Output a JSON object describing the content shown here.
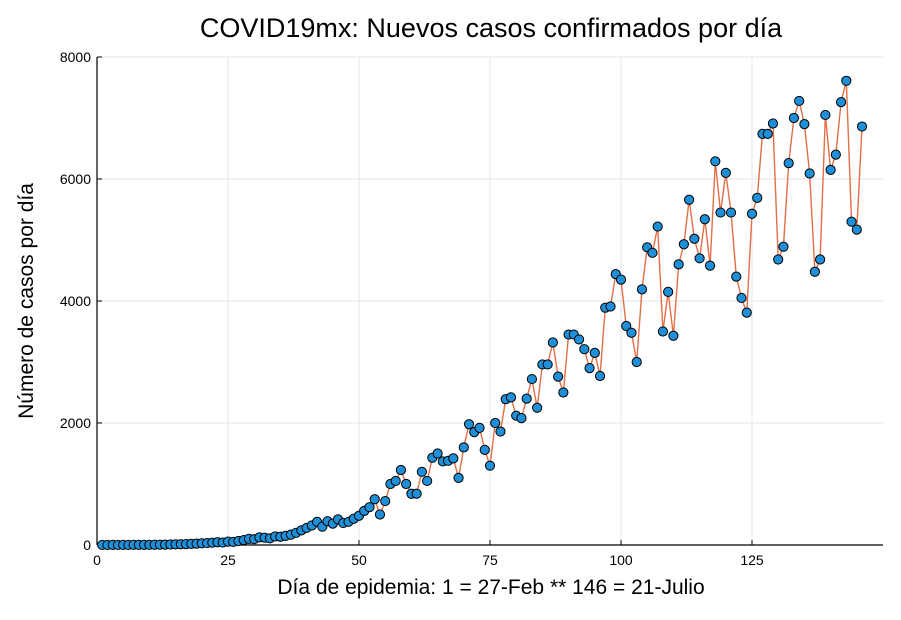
{
  "chart_data": {
    "type": "line",
    "title": "COVID19mx: Nuevos casos confirmados por día",
    "xlabel": "Día de epidemia: 1 = 27-Feb ** 146 = 21-Julio",
    "ylabel": "Número de casos por día",
    "xlim": [
      0,
      150
    ],
    "ylim": [
      0,
      8000
    ],
    "xticks": [
      0,
      25,
      50,
      75,
      100,
      125
    ],
    "yticks": [
      0,
      2000,
      4000,
      6000,
      8000
    ],
    "grid": true,
    "legend": "none",
    "colors": {
      "line": "#e26f46",
      "marker_fill": "#1f8fd8",
      "marker_edge": "#000000"
    },
    "x": [
      1,
      2,
      3,
      4,
      5,
      6,
      7,
      8,
      9,
      10,
      11,
      12,
      13,
      14,
      15,
      16,
      17,
      18,
      19,
      20,
      21,
      22,
      23,
      24,
      25,
      26,
      27,
      28,
      29,
      30,
      31,
      32,
      33,
      34,
      35,
      36,
      37,
      38,
      39,
      40,
      41,
      42,
      43,
      44,
      45,
      46,
      47,
      48,
      49,
      50,
      51,
      52,
      53,
      54,
      55,
      56,
      57,
      58,
      59,
      60,
      61,
      62,
      63,
      64,
      65,
      66,
      67,
      68,
      69,
      70,
      71,
      72,
      73,
      74,
      75,
      76,
      77,
      78,
      79,
      80,
      81,
      82,
      83,
      84,
      85,
      86,
      87,
      88,
      89,
      90,
      91,
      92,
      93,
      94,
      95,
      96,
      97,
      98,
      99,
      100,
      101,
      102,
      103,
      104,
      105,
      106,
      107,
      108,
      109,
      110,
      111,
      112,
      113,
      114,
      115,
      116,
      117,
      118,
      119,
      120,
      121,
      122,
      123,
      124,
      125,
      126,
      127,
      128,
      129,
      130,
      131,
      132,
      133,
      134,
      135,
      136,
      137,
      138,
      139,
      140,
      141,
      142,
      143,
      144,
      145,
      146
    ],
    "y": [
      1,
      1,
      2,
      1,
      2,
      1,
      3,
      2,
      2,
      3,
      4,
      5,
      6,
      8,
      10,
      12,
      15,
      18,
      22,
      28,
      32,
      38,
      45,
      40,
      55,
      50,
      65,
      80,
      100,
      95,
      125,
      120,
      110,
      140,
      135,
      150,
      170,
      200,
      240,
      280,
      320,
      380,
      300,
      390,
      350,
      420,
      360,
      380,
      430,
      480,
      560,
      620,
      750,
      500,
      720,
      1000,
      1050,
      1230,
      1000,
      840,
      840,
      1200,
      1050,
      1430,
      1500,
      1370,
      1380,
      1420,
      1100,
      1600,
      1980,
      1850,
      1920,
      1560,
      1300,
      2000,
      1860,
      2390,
      2420,
      2120,
      2080,
      2400,
      2720,
      2250,
      2960,
      2960,
      3320,
      2760,
      2500,
      3450,
      3450,
      3370,
      3210,
      2900,
      3150,
      2770,
      3890,
      3910,
      4440,
      4350,
      3590,
      3480,
      3000,
      4190,
      4880,
      4790,
      5220,
      3500,
      4150,
      3430,
      4600,
      4930,
      5660,
      5020,
      4700,
      5340,
      4580,
      6290,
      5450,
      6100,
      5450,
      4400,
      4050,
      3810,
      5430,
      5690,
      6740,
      6740,
      6910,
      4680,
      4890,
      6260,
      7000,
      7280,
      6900,
      6090,
      4480,
      4680,
      7050,
      6150,
      6400,
      7260,
      7610,
      5300,
      5170,
      6860
    ]
  }
}
